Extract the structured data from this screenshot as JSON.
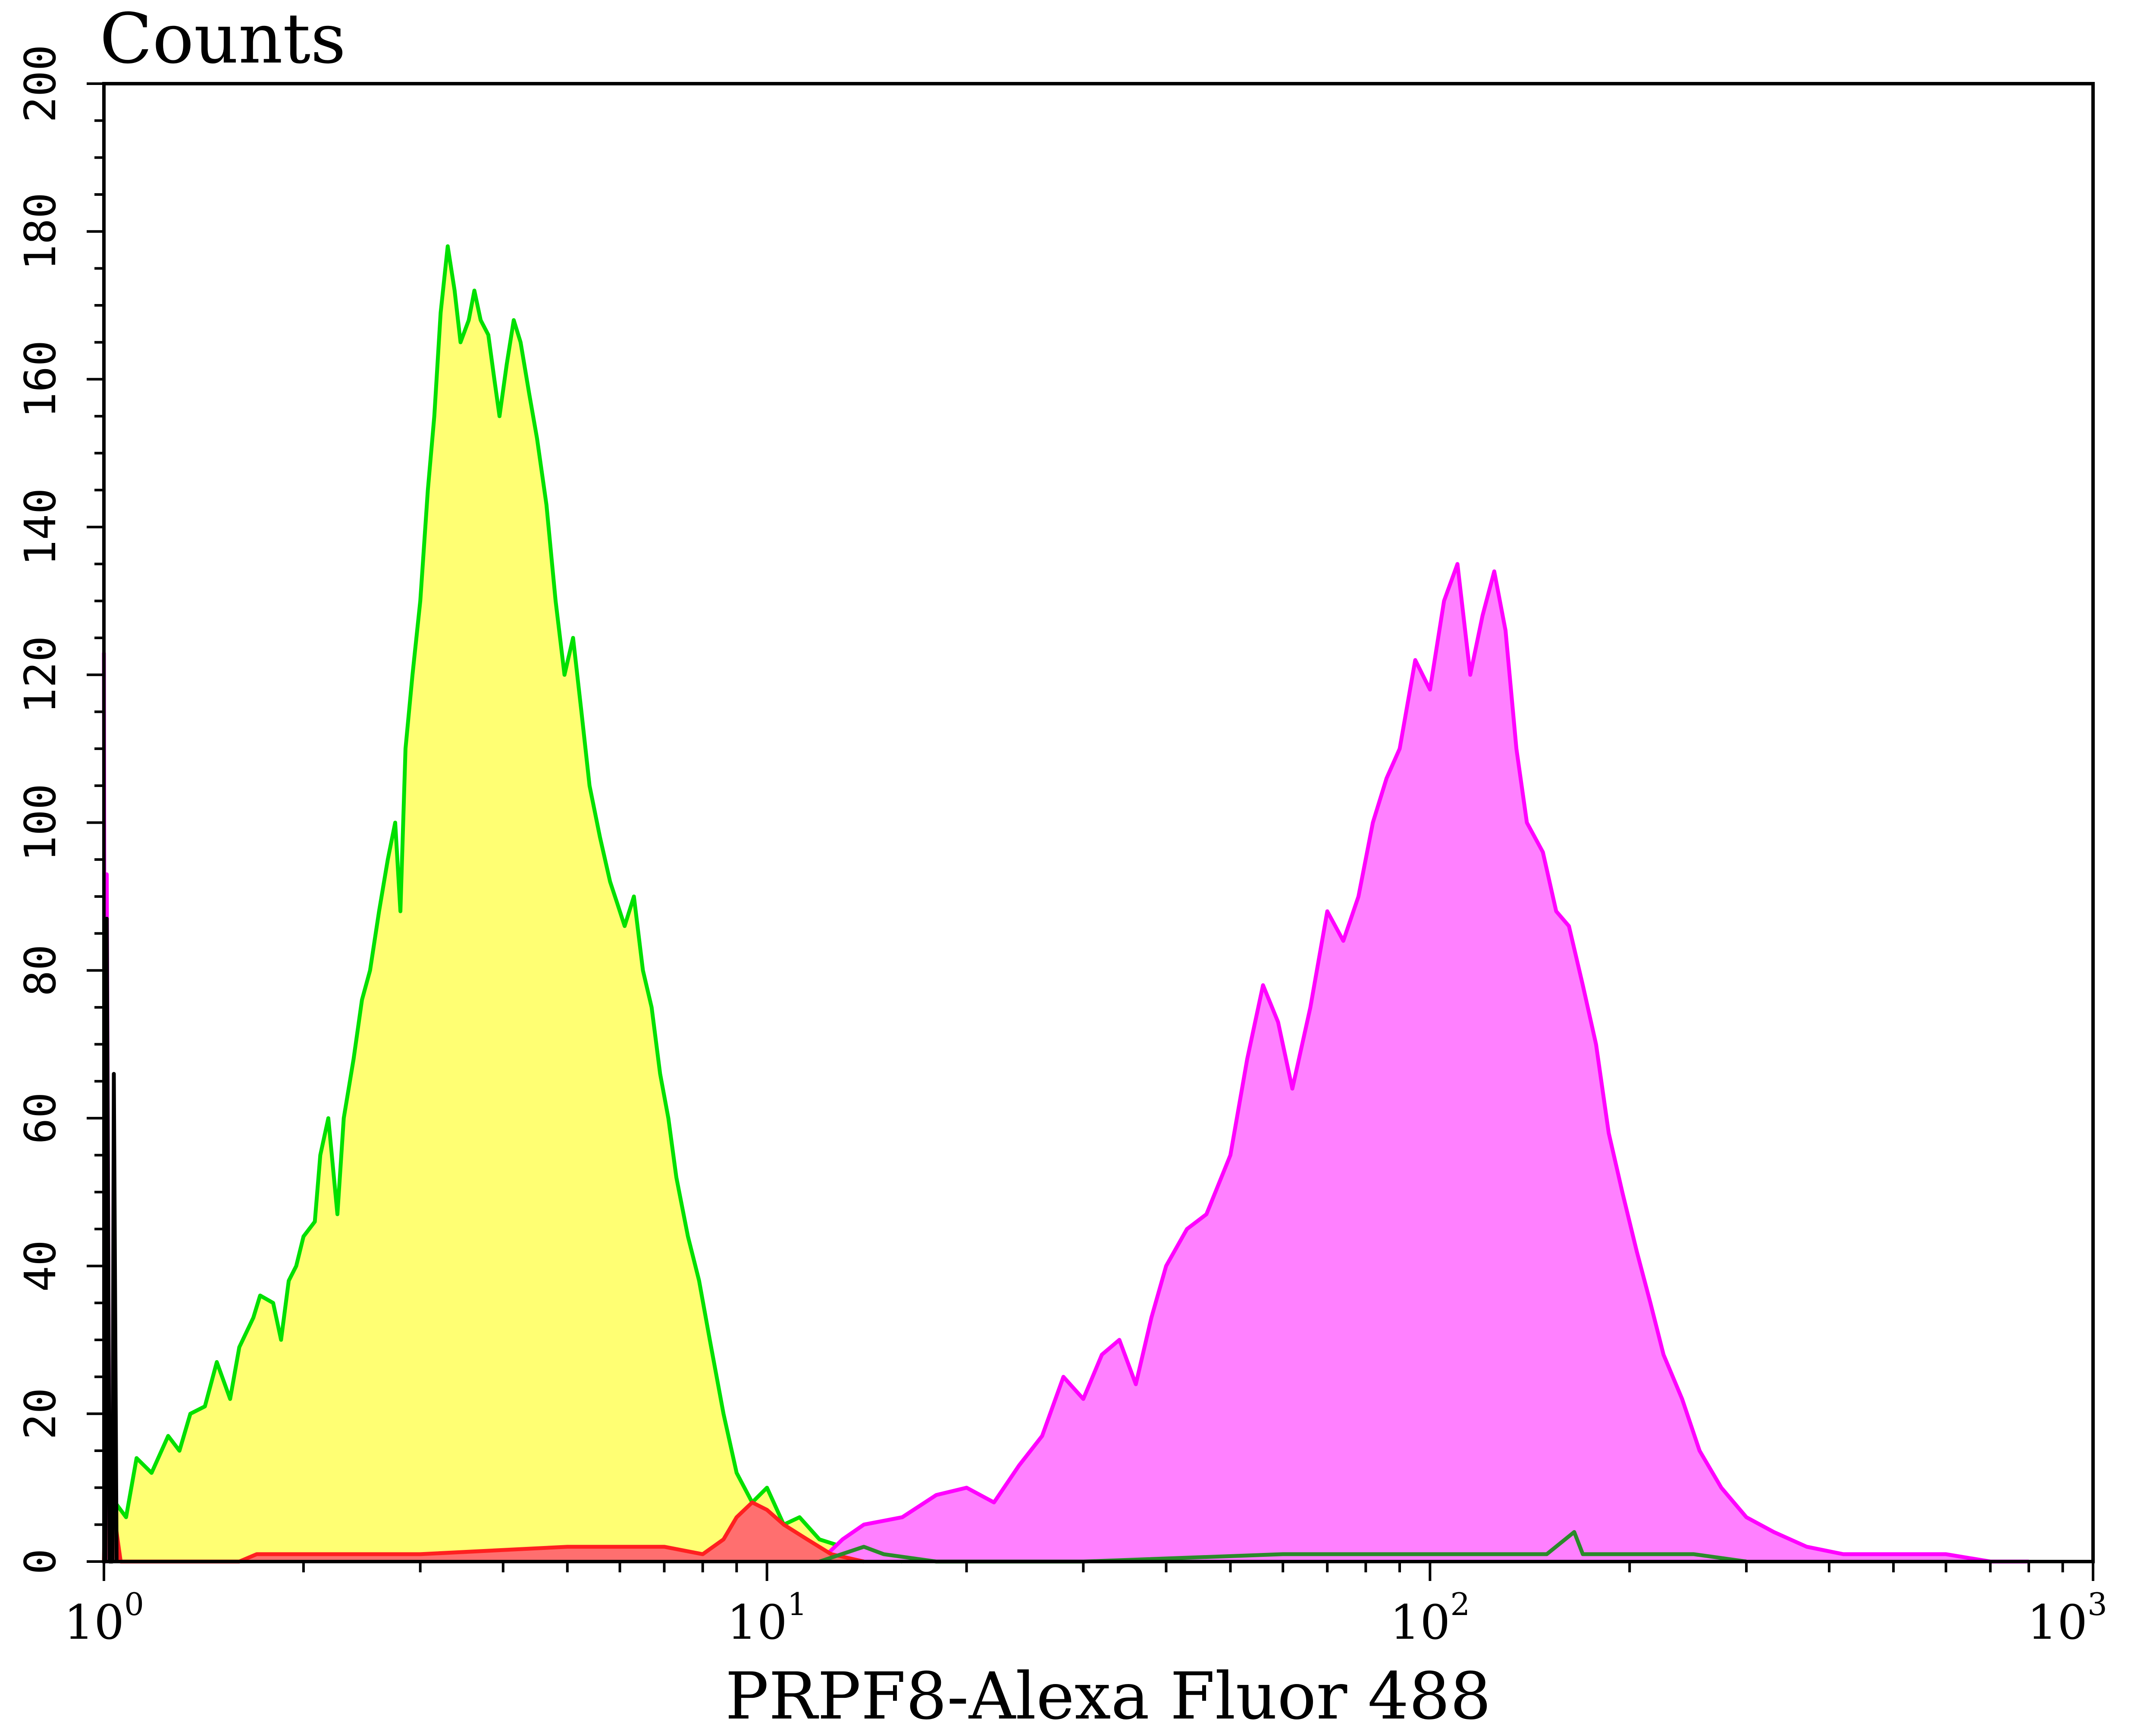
{
  "chart_data": {
    "type": "area",
    "xscale": "log",
    "xlim": [
      1,
      1000
    ],
    "ylim": [
      0,
      200
    ],
    "grid": false,
    "ylabel": "Counts",
    "xlabel": "PRPF8-Alexa Fluor 488",
    "y_ticks": [
      "0",
      "20",
      "40",
      "60",
      "80",
      "100",
      "120",
      "140",
      "160",
      "180",
      "200"
    ],
    "x_ticks": [
      {
        "base": "10",
        "exp": "0"
      },
      {
        "base": "10",
        "exp": "1"
      },
      {
        "base": "10",
        "exp": "2"
      },
      {
        "base": "10",
        "exp": "3"
      }
    ],
    "series": [
      {
        "fill": "#ffff73",
        "stroke": "#00e000",
        "points": [
          [
            1.0,
            0
          ],
          [
            1.02,
            9
          ],
          [
            1.08,
            6
          ],
          [
            1.12,
            14
          ],
          [
            1.18,
            12
          ],
          [
            1.25,
            17
          ],
          [
            1.3,
            15
          ],
          [
            1.35,
            20
          ],
          [
            1.42,
            21
          ],
          [
            1.48,
            27
          ],
          [
            1.55,
            22
          ],
          [
            1.6,
            29
          ],
          [
            1.68,
            33
          ],
          [
            1.72,
            36
          ],
          [
            1.8,
            35
          ],
          [
            1.85,
            30
          ],
          [
            1.9,
            38
          ],
          [
            1.95,
            40
          ],
          [
            2.0,
            44
          ],
          [
            2.08,
            46
          ],
          [
            2.12,
            55
          ],
          [
            2.18,
            60
          ],
          [
            2.25,
            47
          ],
          [
            2.3,
            60
          ],
          [
            2.38,
            68
          ],
          [
            2.45,
            76
          ],
          [
            2.52,
            80
          ],
          [
            2.6,
            88
          ],
          [
            2.68,
            95
          ],
          [
            2.75,
            100
          ],
          [
            2.8,
            88
          ],
          [
            2.85,
            110
          ],
          [
            2.92,
            120
          ],
          [
            3.0,
            130
          ],
          [
            3.08,
            145
          ],
          [
            3.15,
            155
          ],
          [
            3.22,
            169
          ],
          [
            3.3,
            178
          ],
          [
            3.38,
            172
          ],
          [
            3.45,
            165
          ],
          [
            3.55,
            168
          ],
          [
            3.62,
            172
          ],
          [
            3.7,
            168
          ],
          [
            3.8,
            166
          ],
          [
            3.88,
            160
          ],
          [
            3.95,
            155
          ],
          [
            4.05,
            162
          ],
          [
            4.15,
            168
          ],
          [
            4.25,
            165
          ],
          [
            4.38,
            158
          ],
          [
            4.5,
            152
          ],
          [
            4.65,
            143
          ],
          [
            4.8,
            130
          ],
          [
            4.95,
            120
          ],
          [
            5.1,
            125
          ],
          [
            5.25,
            115
          ],
          [
            5.4,
            105
          ],
          [
            5.6,
            98
          ],
          [
            5.8,
            92
          ],
          [
            5.95,
            89
          ],
          [
            6.1,
            86
          ],
          [
            6.3,
            90
          ],
          [
            6.5,
            80
          ],
          [
            6.7,
            75
          ],
          [
            6.9,
            66
          ],
          [
            7.1,
            60
          ],
          [
            7.3,
            52
          ],
          [
            7.6,
            44
          ],
          [
            7.9,
            38
          ],
          [
            8.2,
            30
          ],
          [
            8.6,
            20
          ],
          [
            9.0,
            12
          ],
          [
            9.5,
            8
          ],
          [
            10.0,
            10
          ],
          [
            10.6,
            5
          ],
          [
            11.2,
            6
          ],
          [
            12.0,
            3
          ],
          [
            13.0,
            2
          ],
          [
            14.0,
            1
          ],
          [
            16.0,
            0
          ]
        ]
      },
      {
        "fill": "#ff80ff",
        "stroke": "#ff00ff",
        "points": [
          [
            12.0,
            0
          ],
          [
            13.0,
            3
          ],
          [
            14.0,
            5
          ],
          [
            16.0,
            6
          ],
          [
            18.0,
            9
          ],
          [
            20.0,
            10
          ],
          [
            22.0,
            8
          ],
          [
            24.0,
            13
          ],
          [
            26.0,
            17
          ],
          [
            28.0,
            25
          ],
          [
            30.0,
            22
          ],
          [
            32.0,
            28
          ],
          [
            34.0,
            30
          ],
          [
            36.0,
            24
          ],
          [
            38.0,
            33
          ],
          [
            40.0,
            40
          ],
          [
            43.0,
            45
          ],
          [
            46.0,
            47
          ],
          [
            50.0,
            55
          ],
          [
            53.0,
            68
          ],
          [
            56.0,
            78
          ],
          [
            59.0,
            73
          ],
          [
            62.0,
            64
          ],
          [
            66.0,
            75
          ],
          [
            70.0,
            88
          ],
          [
            74.0,
            84
          ],
          [
            78.0,
            90
          ],
          [
            82.0,
            100
          ],
          [
            86.0,
            106
          ],
          [
            90.0,
            110
          ],
          [
            95.0,
            122
          ],
          [
            100.0,
            118
          ],
          [
            105.0,
            130
          ],
          [
            110.0,
            135
          ],
          [
            115.0,
            120
          ],
          [
            120.0,
            128
          ],
          [
            125.0,
            134
          ],
          [
            130.0,
            126
          ],
          [
            135.0,
            110
          ],
          [
            140.0,
            100
          ],
          [
            148.0,
            96
          ],
          [
            155.0,
            88
          ],
          [
            162.0,
            86
          ],
          [
            170.0,
            78
          ],
          [
            178.0,
            70
          ],
          [
            186.0,
            58
          ],
          [
            195.0,
            50
          ],
          [
            205.0,
            42
          ],
          [
            215.0,
            35
          ],
          [
            225.0,
            28
          ],
          [
            240.0,
            22
          ],
          [
            255.0,
            15
          ],
          [
            275.0,
            10
          ],
          [
            300.0,
            6
          ],
          [
            330.0,
            4
          ],
          [
            370.0,
            2
          ],
          [
            420.0,
            1
          ],
          [
            500.0,
            1
          ],
          [
            600.0,
            1
          ],
          [
            700.0,
            0
          ],
          [
            800.0,
            0
          ]
        ]
      },
      {
        "fill": "#ff6f6f",
        "stroke": "#ff2020",
        "points": [
          [
            1.0,
            0
          ],
          [
            1.01,
            25
          ],
          [
            1.03,
            8
          ],
          [
            1.06,
            0
          ],
          [
            1.6,
            0
          ],
          [
            1.7,
            1
          ],
          [
            2.0,
            1
          ],
          [
            3.0,
            1
          ],
          [
            5.0,
            2
          ],
          [
            7.0,
            2
          ],
          [
            8.0,
            1
          ],
          [
            8.6,
            3
          ],
          [
            9.0,
            6
          ],
          [
            9.5,
            8
          ],
          [
            10.0,
            7
          ],
          [
            10.6,
            5
          ],
          [
            11.5,
            3
          ],
          [
            12.5,
            1
          ],
          [
            14.0,
            0
          ]
        ]
      },
      {
        "fill": "none",
        "stroke": "#2a8a2a",
        "points": [
          [
            12.0,
            0
          ],
          [
            14.0,
            2
          ],
          [
            15.0,
            1
          ],
          [
            18.0,
            0
          ],
          [
            30.0,
            0
          ],
          [
            60.0,
            1
          ],
          [
            100.0,
            1
          ],
          [
            150.0,
            1
          ],
          [
            165.0,
            4
          ],
          [
            170.0,
            1
          ],
          [
            250.0,
            1
          ],
          [
            300.0,
            0
          ]
        ]
      },
      {
        "fill": "none",
        "stroke": "#ff00ff",
        "points": [
          [
            1.0,
            123
          ],
          [
            1.005,
            0
          ],
          [
            1.01,
            93
          ],
          [
            1.02,
            0
          ]
        ]
      },
      {
        "fill": "none",
        "stroke": "#000000",
        "points": [
          [
            1.005,
            0
          ],
          [
            1.01,
            87
          ],
          [
            1.02,
            0
          ],
          [
            1.03,
            0
          ],
          [
            1.035,
            66
          ],
          [
            1.045,
            0
          ]
        ]
      }
    ]
  }
}
